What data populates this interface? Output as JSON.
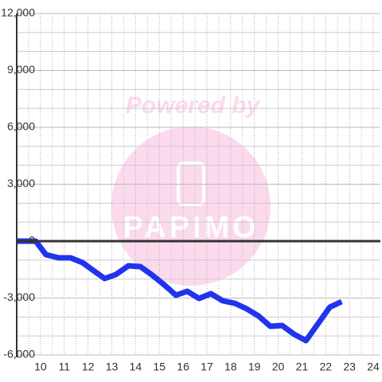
{
  "chart_data": {
    "type": "line",
    "watermark": {
      "text": "Powered by",
      "logo_text": "PAPIMO"
    },
    "series": [
      {
        "color": "#2233ee",
        "x": [
          9.0,
          9.8,
          10.23,
          10.77,
          11.27,
          11.77,
          12.23,
          12.7,
          13.17,
          13.7,
          14.2,
          14.67,
          15.17,
          15.7,
          16.17,
          16.67,
          17.17,
          17.67,
          18.17,
          18.67,
          19.17,
          19.67,
          20.17,
          20.67,
          21.17,
          21.67,
          22.17,
          22.67
        ],
        "values": [
          0,
          0,
          -713,
          -880,
          -880,
          -1133,
          -1552,
          -1972,
          -1762,
          -1300,
          -1343,
          -1762,
          -2266,
          -2853,
          -2643,
          -3021,
          -2769,
          -3147,
          -3273,
          -3566,
          -3944,
          -4490,
          -4448,
          -4909,
          -5245,
          -4364,
          -3483,
          -3189
        ]
      }
    ],
    "xlim": [
      9,
      24.3
    ],
    "xticks": [
      10,
      11,
      12,
      13,
      14,
      15,
      16,
      17,
      18,
      19,
      20,
      21,
      22,
      23,
      24
    ],
    "x_minor_ticks": [
      9.5,
      10.5,
      11.5,
      12.5,
      13.5,
      14.5,
      15.5,
      16.5,
      17.5,
      18.5,
      19.5,
      20.5,
      21.5,
      22.5,
      23.5
    ],
    "ylim": [
      -6000,
      12000
    ],
    "yticks": [
      {
        "value": -6000,
        "label": "-6,000"
      },
      {
        "value": -3000,
        "label": "-3,000"
      },
      0,
      {
        "value": 3000,
        "label": "3,000"
      },
      {
        "value": 6000,
        "label": "6,000"
      },
      {
        "value": 9000,
        "label": "9,000"
      },
      {
        "value": 12000,
        "label": "12,000"
      }
    ],
    "y_minor_ticks": [
      -5000,
      -4000,
      -2000,
      -1000,
      1000,
      2000,
      4000,
      5000,
      7000,
      8000,
      10000,
      11000
    ],
    "grid": true,
    "zero_line": true
  }
}
